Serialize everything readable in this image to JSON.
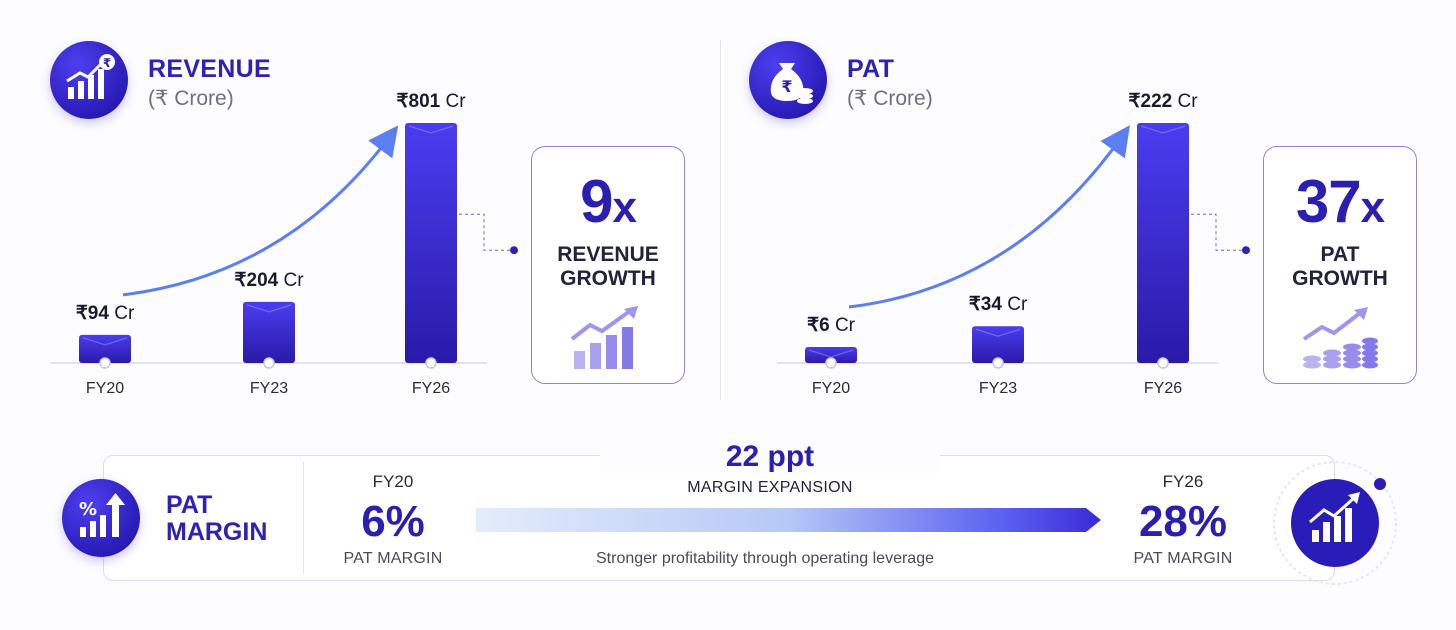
{
  "revenue": {
    "title": "REVENUE",
    "unit": "(₹ Crore)",
    "growth_value": "9",
    "growth_suffix": "x",
    "growth_line1": "REVENUE",
    "growth_line2": "GROWTH"
  },
  "pat": {
    "title": "PAT",
    "unit": "(₹ Crore)",
    "growth_value": "37",
    "growth_suffix": "x",
    "growth_line1": "PAT",
    "growth_line2": "GROWTH"
  },
  "chart_data": [
    {
      "type": "bar",
      "title": "REVENUE",
      "subtitle": "(₹ Crore)",
      "categories": [
        "FY20",
        "FY23",
        "FY26"
      ],
      "values": [
        94,
        204,
        801
      ],
      "value_labels": [
        "₹94",
        "₹204",
        "₹801"
      ],
      "value_suffix": "Cr",
      "ylim": [
        0,
        801
      ],
      "grid": false
    },
    {
      "type": "bar",
      "title": "PAT",
      "subtitle": "(₹ Crore)",
      "categories": [
        "FY20",
        "FY23",
        "FY26"
      ],
      "values": [
        6,
        34,
        222
      ],
      "value_labels": [
        "₹6",
        "₹34",
        "₹222"
      ],
      "value_suffix": "Cr",
      "ylim": [
        0,
        222
      ],
      "grid": false
    }
  ],
  "margin": {
    "title_line1": "PAT",
    "title_line2": "MARGIN",
    "from_year": "FY20",
    "from_value": "6%",
    "from_label": "PAT MARGIN",
    "to_year": "FY26",
    "to_value": "28%",
    "to_label": "PAT MARGIN",
    "expansion_value": "22 ppt",
    "expansion_label": "MARGIN EXPANSION",
    "tagline": "Stronger profitability through operating leverage"
  },
  "colors": {
    "bar_top": "#4a3df0",
    "bar_bottom": "#2a1aa8",
    "accent": "#2e22b4",
    "arrow": "#5b7ff0"
  },
  "icons": {
    "revenue": "rupee-growth-chart-icon",
    "pat": "money-bag-coins-icon",
    "margin": "percent-growth-icon",
    "margin_right": "growth-chart-icon"
  }
}
